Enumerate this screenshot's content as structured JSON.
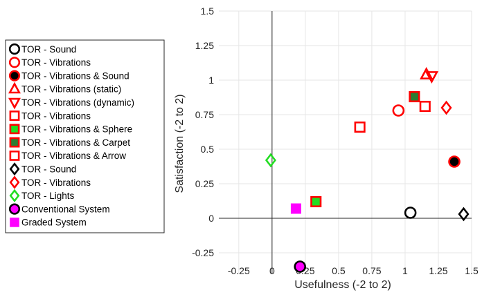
{
  "chart_data": {
    "type": "scatter",
    "title": "",
    "xlabel": "Usefulness (-2 to 2)",
    "ylabel": "Satisfaction (-2 to 2)",
    "xlim": [
      -0.4,
      1.5
    ],
    "ylim": [
      -0.4,
      1.5
    ],
    "xticks": [
      -0.25,
      0,
      0.25,
      0.5,
      0.75,
      1,
      1.25,
      1.5
    ],
    "xtick_labels": [
      "-0.25",
      "0",
      "0.25",
      "0.5",
      "0.75",
      "1",
      "1.25",
      "1.5"
    ],
    "yticks": [
      -0.25,
      0,
      0.25,
      0.5,
      0.75,
      1,
      1.25,
      1.5
    ],
    "ytick_labels": [
      "-0.25",
      "0",
      "0.25",
      "0.5",
      "0.75",
      "1",
      "1.25",
      "1.5"
    ],
    "grid": true,
    "legend_position": "left",
    "colors": {
      "black": "#000000",
      "red": "#ff0000",
      "green": "#22dd22",
      "dark_green": "#2e7d32",
      "magenta": "#ff00ff"
    },
    "series": [
      {
        "name": "TOR - Sound",
        "marker": "circle",
        "edge": "#000000",
        "fill": "none",
        "x": [
          1.04
        ],
        "y": [
          0.04
        ]
      },
      {
        "name": "TOR - Vibrations",
        "marker": "circle",
        "edge": "#ff0000",
        "fill": "none",
        "x": [
          0.95
        ],
        "y": [
          0.78
        ]
      },
      {
        "name": "TOR - Vibrations & Sound",
        "marker": "circle",
        "edge": "#ff0000",
        "fill": "#000000",
        "x": [
          1.37
        ],
        "y": [
          0.41
        ]
      },
      {
        "name": "TOR - Vibrations (static)",
        "marker": "triangle-up",
        "edge": "#ff0000",
        "fill": "none",
        "x": [
          1.16
        ],
        "y": [
          1.04
        ]
      },
      {
        "name": "TOR - Vibrations (dynamic)",
        "marker": "triangle-down",
        "edge": "#ff0000",
        "fill": "none",
        "x": [
          1.2
        ],
        "y": [
          1.03
        ]
      },
      {
        "name": "TOR - Vibrations",
        "marker": "square",
        "edge": "#ff0000",
        "fill": "none",
        "x": [
          0.66,
          1.15
        ],
        "y": [
          0.66,
          0.81
        ]
      },
      {
        "name": "TOR - Vibrations & Sphere",
        "marker": "square",
        "edge": "#ff0000",
        "fill": "#22dd22",
        "x": [
          0.33
        ],
        "y": [
          0.12
        ]
      },
      {
        "name": "TOR - Vibrations & Carpet",
        "marker": "square",
        "edge": "#ff0000",
        "fill": "#2e7d32",
        "x": [
          1.07
        ],
        "y": [
          0.88
        ]
      },
      {
        "name": "TOR - Vibrations & Arrow",
        "marker": "square",
        "edge": "#ff0000",
        "fill": "none",
        "x": [],
        "y": []
      },
      {
        "name": "TOR - Sound",
        "marker": "diamond",
        "edge": "#000000",
        "fill": "none",
        "x": [
          1.44
        ],
        "y": [
          0.03
        ]
      },
      {
        "name": "TOR - Vibrations",
        "marker": "diamond",
        "edge": "#ff0000",
        "fill": "none",
        "x": [
          1.31
        ],
        "y": [
          0.8
        ]
      },
      {
        "name": "TOR - Lights",
        "marker": "diamond",
        "edge": "#22dd22",
        "fill": "none",
        "x": [
          -0.01
        ],
        "y": [
          0.42
        ]
      },
      {
        "name": "Conventional System",
        "marker": "circle",
        "edge": "#000000",
        "fill": "#ff00ff",
        "x": [
          0.21
        ],
        "y": [
          -0.35
        ]
      },
      {
        "name": "Graded System",
        "marker": "square-filled",
        "edge": "#ff00ff",
        "fill": "#ff00ff",
        "x": [
          0.18
        ],
        "y": [
          0.07
        ]
      }
    ]
  }
}
